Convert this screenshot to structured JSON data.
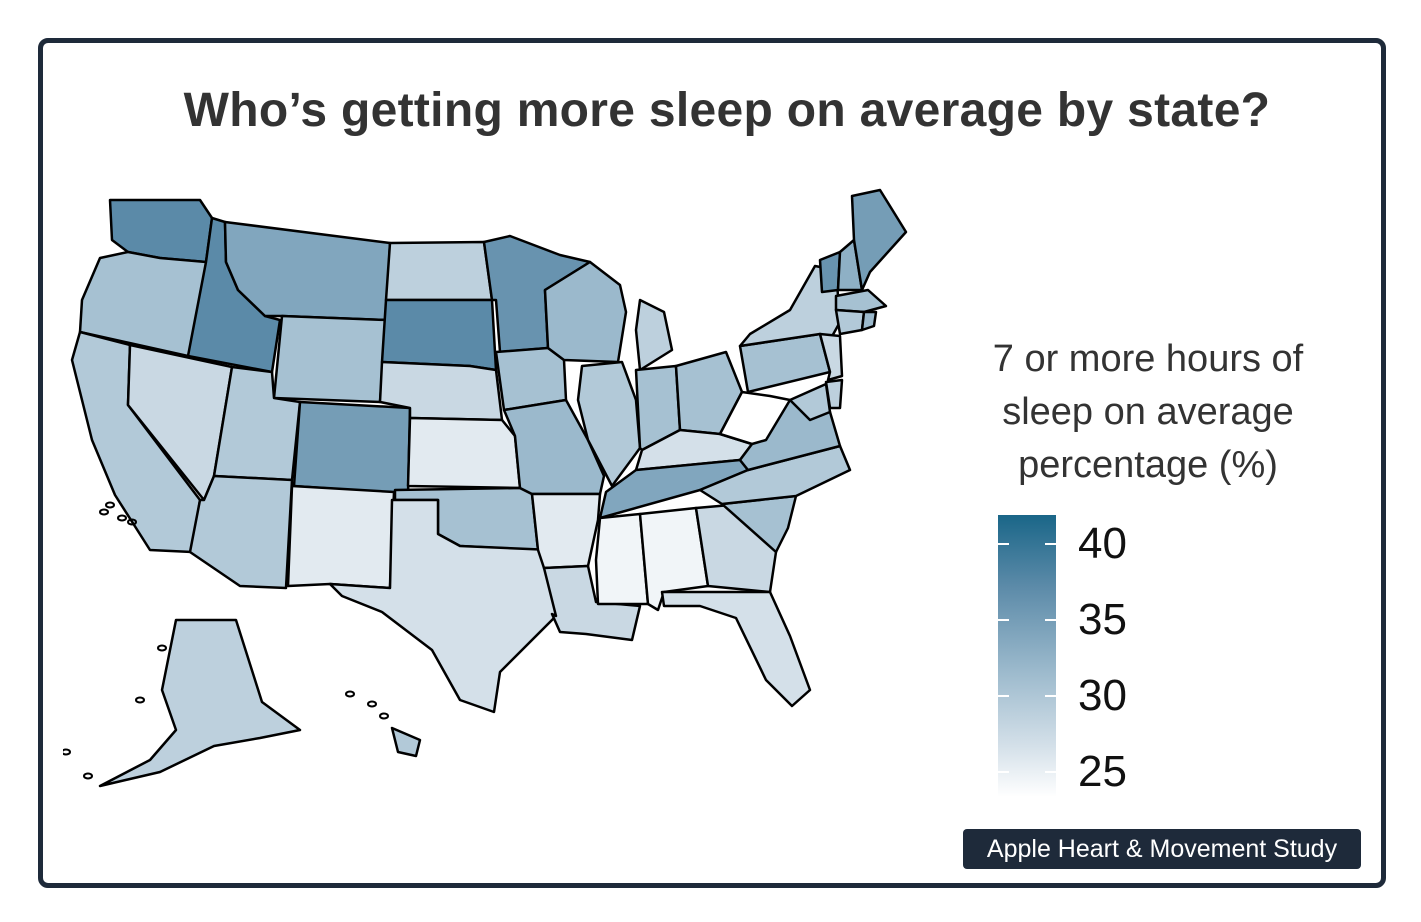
{
  "title": "Who’s getting more sleep on average by state?",
  "legend": {
    "title_lines": [
      "7 or more hours of",
      "sleep on average",
      "percentage (%)"
    ],
    "ticks": [
      40,
      35,
      30,
      25
    ],
    "range": [
      24,
      42
    ]
  },
  "badge": "Apple Heart & Movement Study",
  "colors": {
    "frame": "#1e2a3a",
    "high": "#1a6688",
    "low": "#ffffff",
    "state_border": "#000000"
  },
  "chart_data": {
    "type": "choropleth",
    "regions": [
      {
        "name": "Washington",
        "value": 37
      },
      {
        "name": "Oregon",
        "value": 31
      },
      {
        "name": "California",
        "value": 30
      },
      {
        "name": "Nevada",
        "value": 28
      },
      {
        "name": "Idaho",
        "value": 37
      },
      {
        "name": "Montana",
        "value": 34
      },
      {
        "name": "Wyoming",
        "value": 31
      },
      {
        "name": "Utah",
        "value": 30
      },
      {
        "name": "Arizona",
        "value": 30
      },
      {
        "name": "Colorado",
        "value": 35
      },
      {
        "name": "New Mexico",
        "value": 26
      },
      {
        "name": "North Dakota",
        "value": 29
      },
      {
        "name": "South Dakota",
        "value": 37
      },
      {
        "name": "Nebraska",
        "value": 28
      },
      {
        "name": "Kansas",
        "value": 26
      },
      {
        "name": "Oklahoma",
        "value": 31
      },
      {
        "name": "Texas",
        "value": 27
      },
      {
        "name": "Minnesota",
        "value": 36
      },
      {
        "name": "Iowa",
        "value": 31
      },
      {
        "name": "Missouri",
        "value": 32
      },
      {
        "name": "Arkansas",
        "value": 26
      },
      {
        "name": "Louisiana",
        "value": 28
      },
      {
        "name": "Wisconsin",
        "value": 32
      },
      {
        "name": "Illinois",
        "value": 30
      },
      {
        "name": "Michigan",
        "value": 29
      },
      {
        "name": "Indiana",
        "value": 31
      },
      {
        "name": "Ohio",
        "value": 31
      },
      {
        "name": "Kentucky",
        "value": 27
      },
      {
        "name": "Tennessee",
        "value": 34
      },
      {
        "name": "Mississippi",
        "value": 25
      },
      {
        "name": "Alabama",
        "value": 25
      },
      {
        "name": "Georgia",
        "value": 28
      },
      {
        "name": "Florida",
        "value": 27
      },
      {
        "name": "South Carolina",
        "value": 31
      },
      {
        "name": "North Carolina",
        "value": 30
      },
      {
        "name": "Virginia",
        "value": 32
      },
      {
        "name": "West Virginia",
        "value": 24
      },
      {
        "name": "Pennsylvania",
        "value": 31
      },
      {
        "name": "New York",
        "value": 29
      },
      {
        "name": "Vermont",
        "value": 36
      },
      {
        "name": "New Hampshire",
        "value": 33
      },
      {
        "name": "Maine",
        "value": 35
      },
      {
        "name": "Massachusetts",
        "value": 31
      },
      {
        "name": "Connecticut",
        "value": 30
      },
      {
        "name": "Rhode Island",
        "value": 32
      },
      {
        "name": "New Jersey",
        "value": 28
      },
      {
        "name": "Delaware",
        "value": 29
      },
      {
        "name": "Maryland",
        "value": 30
      },
      {
        "name": "Alaska",
        "value": 29
      },
      {
        "name": "Hawaii",
        "value": 30
      }
    ]
  }
}
